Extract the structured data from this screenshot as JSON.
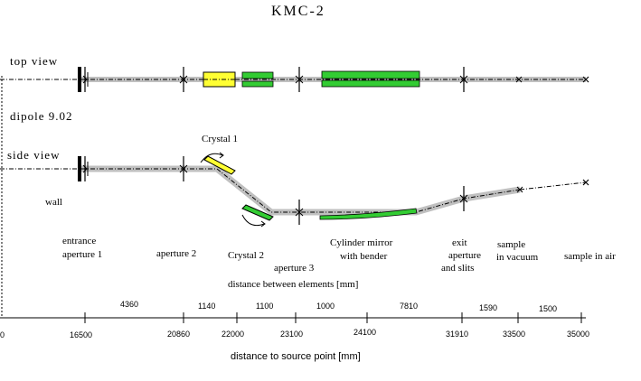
{
  "title": "KMC-2",
  "views": {
    "top": "top view",
    "dipole": "dipole 9.02",
    "side": "side view"
  },
  "labels": {
    "wall": "wall",
    "crystal1": "Crystal 1",
    "entrance_aperture_line1": "entrance",
    "entrance_aperture_line2": "aperture 1",
    "aperture2": "aperture 2",
    "crystal2": "Crystal 2",
    "aperture3": "aperture 3",
    "cylinder_mirror_line1": "Cylinder mirror",
    "cylinder_mirror_line2": "with bender",
    "exit_line1": "exit",
    "exit_line2": "aperture",
    "exit_line3": "and slits",
    "sample_vac_line1": "sample",
    "sample_vac_line2": "in vacuum",
    "sample_air": "sample in air",
    "distance_between": "distance between elements [mm]",
    "distance_source": "distance to source point [mm]"
  },
  "segments": [
    "4360",
    "1140",
    "1100",
    "1000",
    "7810",
    "1590",
    "1500"
  ],
  "ticks": [
    "0",
    "16500",
    "20860",
    "22000",
    "23100",
    "24100",
    "31910",
    "33500",
    "35000"
  ],
  "colors": {
    "beam": "#c0c0c0",
    "crystal1": "#ffff33",
    "green": "#33cc33"
  }
}
